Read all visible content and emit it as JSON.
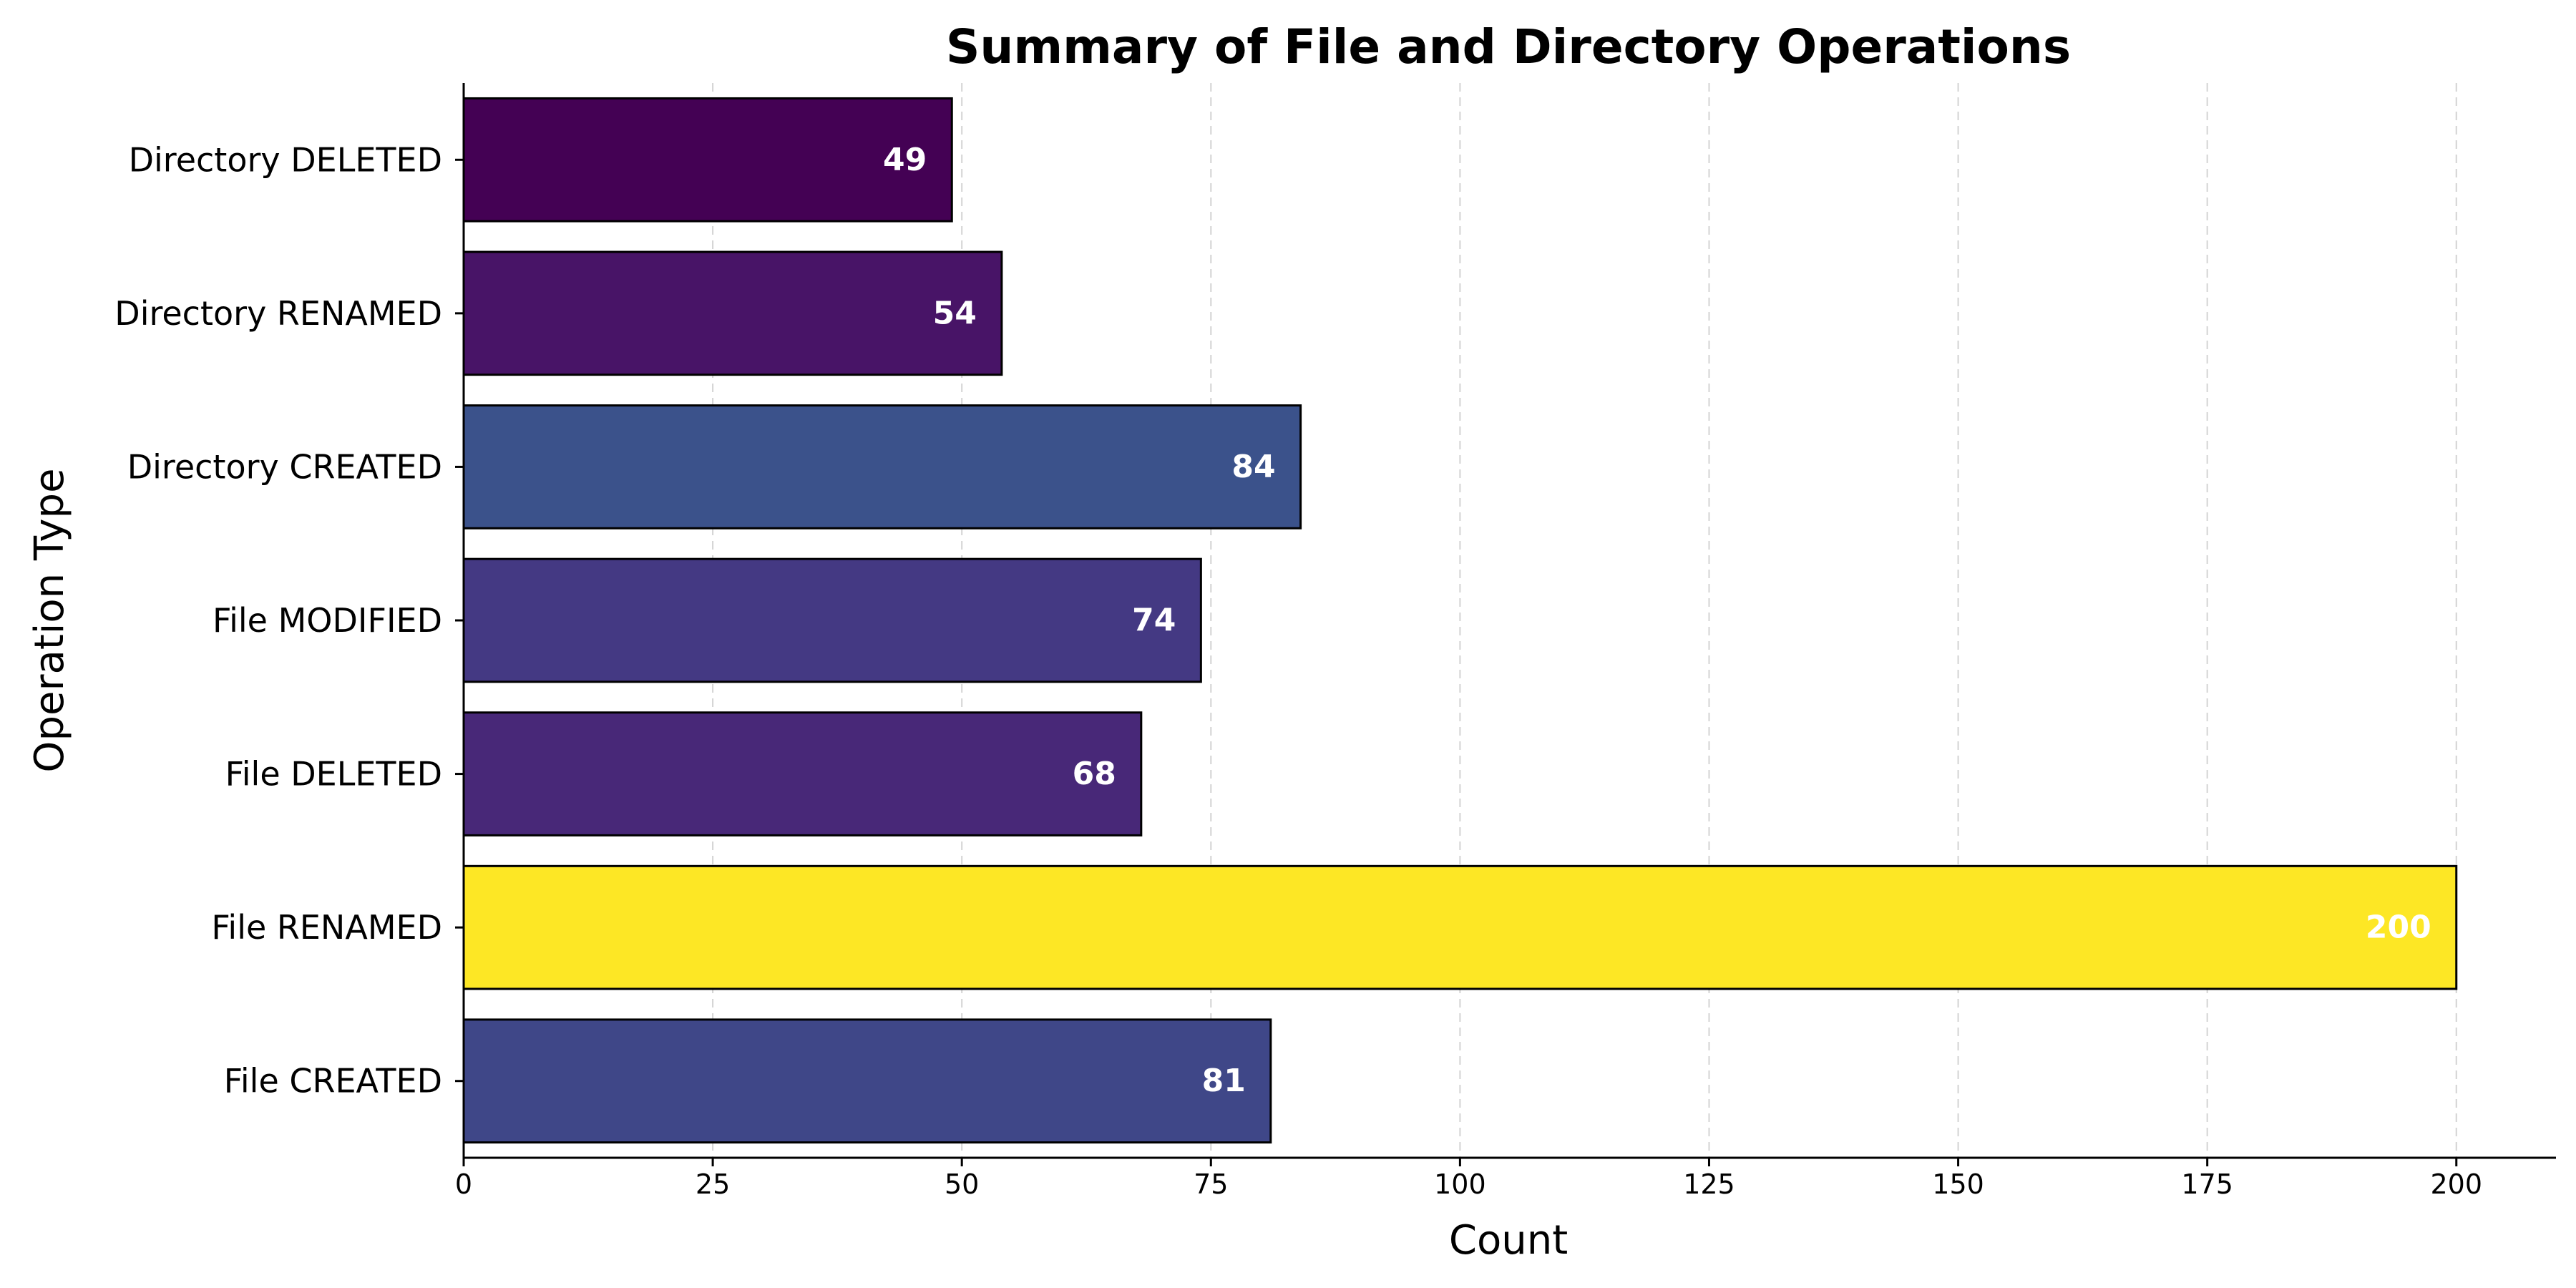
{
  "chart_data": {
    "type": "bar",
    "orientation": "horizontal",
    "title": "Summary of File and Directory Operations",
    "xlabel": "Count",
    "ylabel": "Operation Type",
    "categories": [
      "File CREATED",
      "File RENAMED",
      "File DELETED",
      "File MODIFIED",
      "Directory CREATED",
      "Directory RENAMED",
      "Directory DELETED"
    ],
    "values": [
      81,
      200,
      68,
      74,
      84,
      54,
      49
    ],
    "bar_colors": [
      "#3f4788",
      "#fde725",
      "#482878",
      "#443983",
      "#3b528b",
      "#481467",
      "#440154"
    ],
    "xlim": [
      0,
      210
    ],
    "xticks": [
      0,
      25,
      50,
      75,
      100,
      125,
      150,
      175,
      200
    ],
    "grid": "x-dashed",
    "legend": "none"
  }
}
